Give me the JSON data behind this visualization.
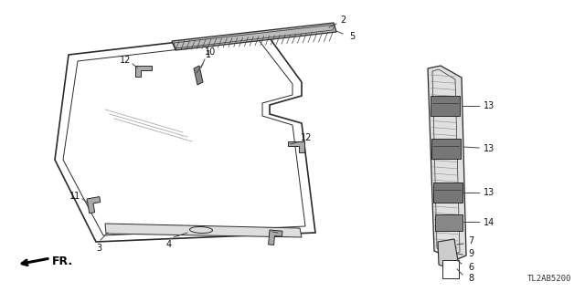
{
  "diagram_code": "TL2AB5200",
  "bg_color": "#ffffff",
  "line_color": "#2a2a2a",
  "gray_light": "#cccccc",
  "gray_med": "#999999",
  "gray_dark": "#666666"
}
